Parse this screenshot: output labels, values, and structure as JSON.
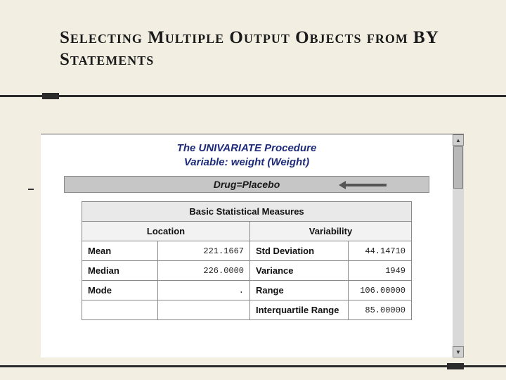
{
  "slide": {
    "title": "Selecting Multiple Output Objects from BY Statements",
    "background_color": "#f2efe2",
    "rule_color": "#2b2b2b"
  },
  "output": {
    "procedure_title_line1": "The UNIVARIATE Procedure",
    "procedure_title_line2": "Variable: weight (Weight)",
    "by_label": "Drug=Placebo",
    "table": {
      "title": "Basic Statistical Measures",
      "location_header": "Location",
      "variability_header": "Variability",
      "rows": {
        "mean_label": "Mean",
        "mean_value": "221.1667",
        "std_label": "Std Deviation",
        "std_value": "44.14710",
        "median_label": "Median",
        "median_value": "226.0000",
        "variance_label": "Variance",
        "variance_value": "1949",
        "mode_label": "Mode",
        "mode_value": ".",
        "range_label": "Range",
        "range_value": "106.00000",
        "iqr_label": "Interquartile Range",
        "iqr_value": "85.00000"
      }
    }
  },
  "colors": {
    "window_bg": "#ffffff",
    "by_bar_bg": "#c6c6c6",
    "border": "#888888",
    "header_bg": "#e9e9e9",
    "subheader_bg": "#f2f2f2",
    "proc_title_color": "#1e2b7a"
  }
}
